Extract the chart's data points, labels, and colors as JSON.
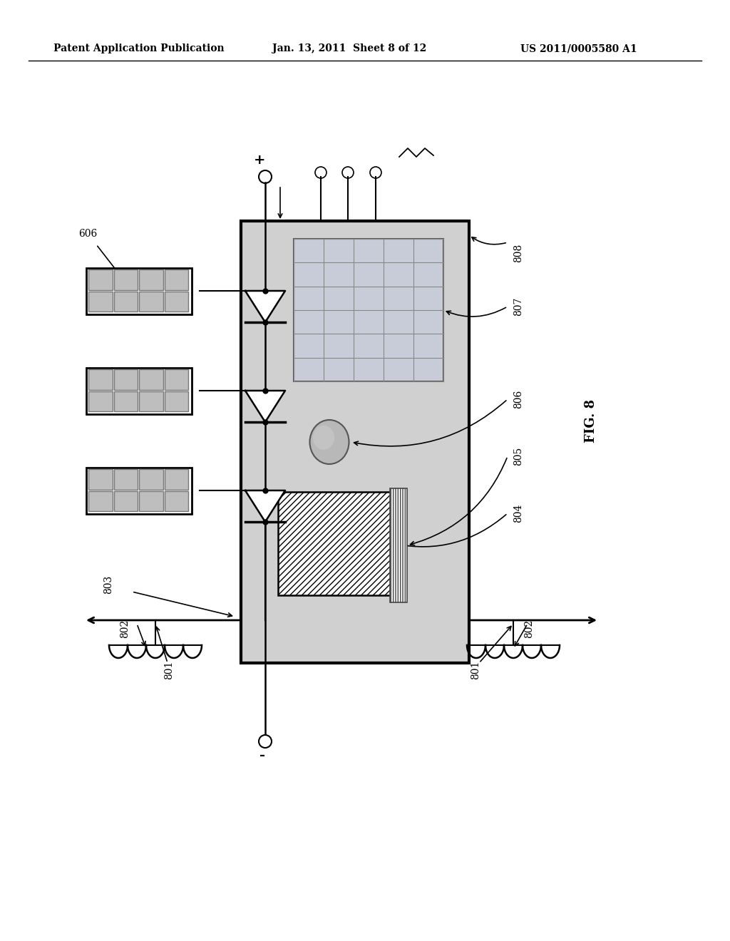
{
  "bg_color": "#ffffff",
  "lc": "#000000",
  "header_text": "Patent Application Publication",
  "header_date": "Jan. 13, 2011  Sheet 8 of 12",
  "header_patent": "US 2011/0005580 A1",
  "fig_label": "FIG. 8",
  "mod_fill": "#d0d0d0",
  "cell_fill": "#c8ccd8",
  "cell_grid": "#888888",
  "hatch_color": "#000000",
  "ball_fill": "#b8b8b8"
}
